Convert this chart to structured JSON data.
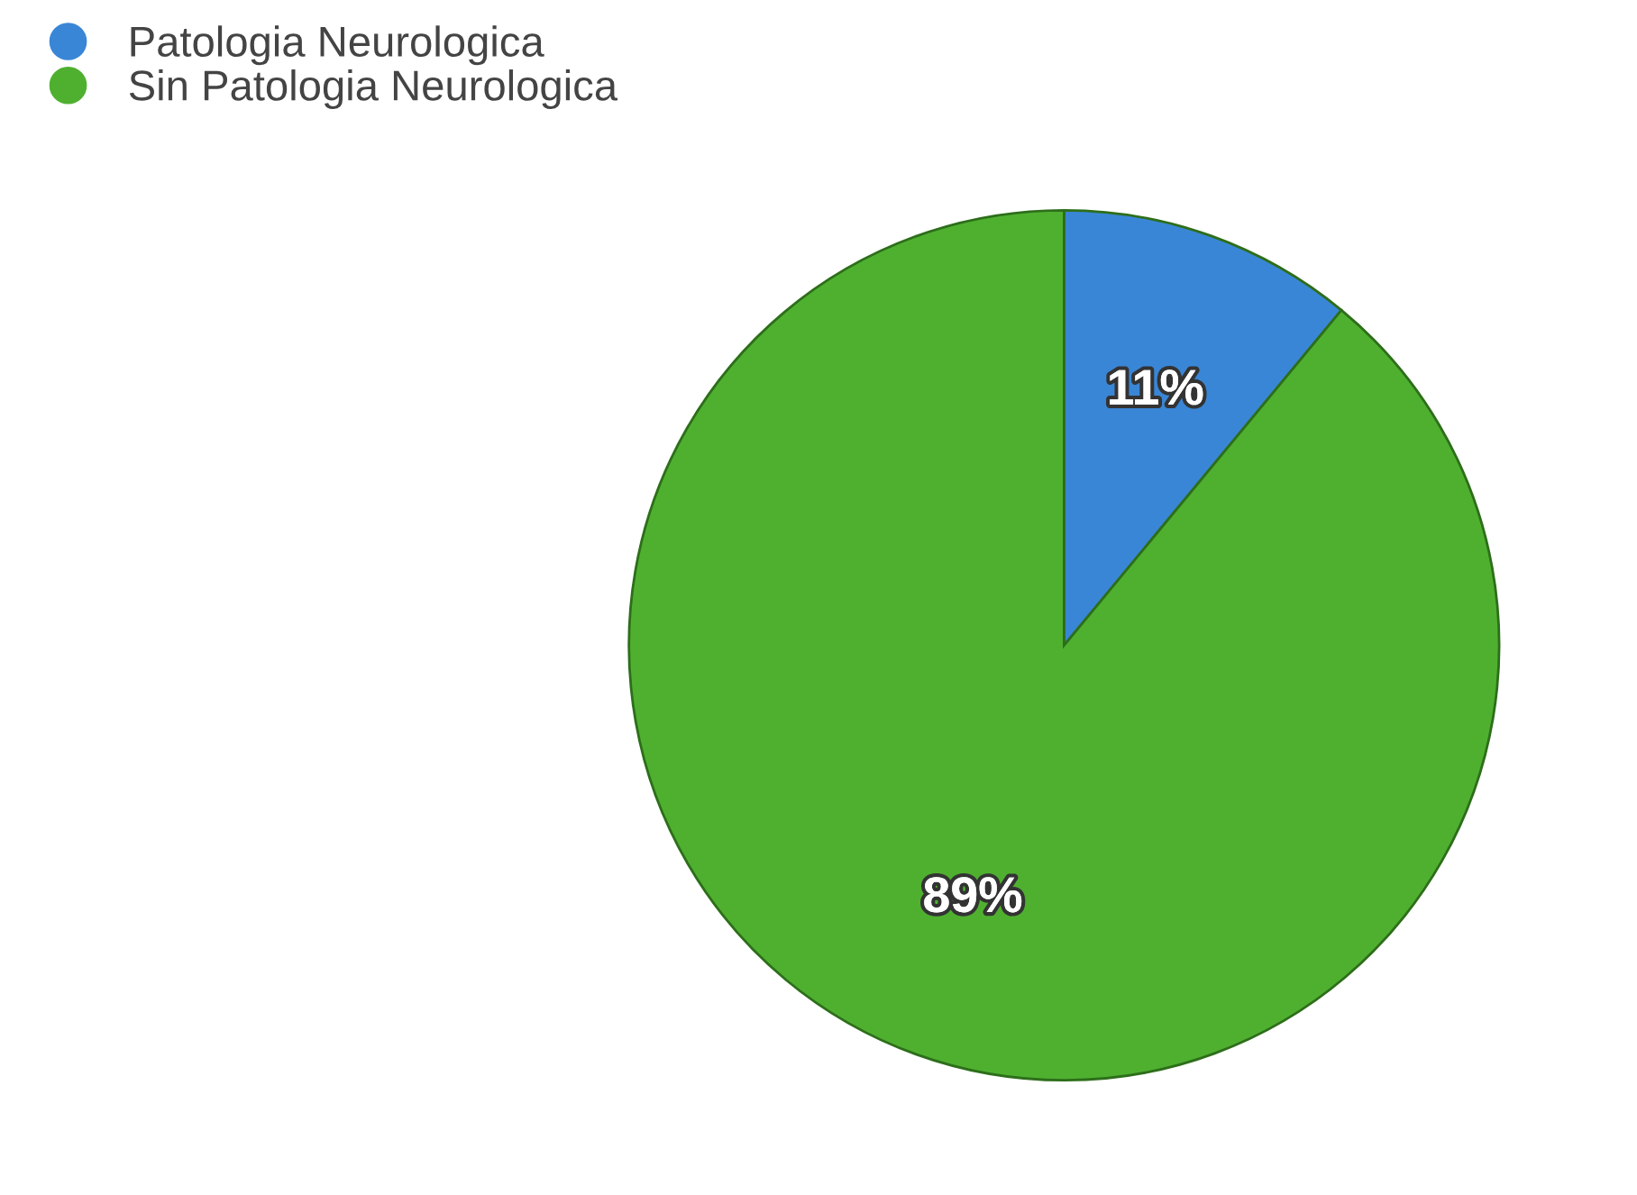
{
  "chart_data": {
    "type": "pie",
    "categories": [
      "Patologia Neurologica",
      "Sin Patologia Neurologica"
    ],
    "values": [
      11,
      89
    ],
    "colors": [
      "#3a86d6",
      "#4fb030"
    ],
    "value_labels": [
      "11%",
      "89%"
    ],
    "legend": "top left"
  }
}
